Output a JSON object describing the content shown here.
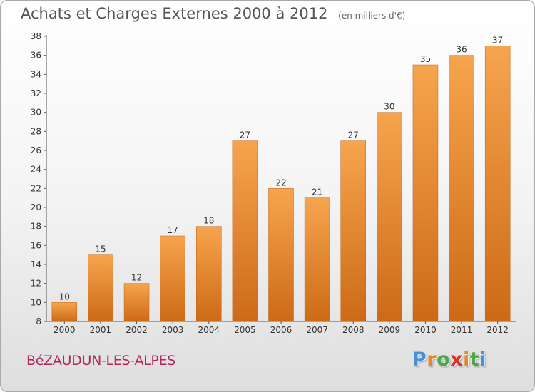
{
  "header": {
    "title": "Achats et Charges Externes 2000 à 2012",
    "unit": "(en milliers d'€)"
  },
  "footer": {
    "commune": "BéZAUDUN-LES-ALPES",
    "logo_letters": [
      "P",
      "r",
      "o",
      "x",
      "i",
      "t",
      "i"
    ]
  },
  "colors": {
    "bar_light": "#f7a44e",
    "bar_dark": "#cc6a17",
    "commune_text": "#b4255e",
    "logo": [
      "#4a90d9",
      "#e8862a",
      "#4ca84c",
      "#d9342b",
      "#e8862a",
      "#4ca84c",
      "#4a90d9"
    ]
  },
  "chart_data": {
    "type": "bar",
    "categories": [
      "2000",
      "2001",
      "2002",
      "2003",
      "2004",
      "2005",
      "2006",
      "2007",
      "2008",
      "2009",
      "2010",
      "2011",
      "2012"
    ],
    "values": [
      10,
      15,
      12,
      17,
      18,
      27,
      22,
      21,
      27,
      30,
      35,
      36,
      37
    ],
    "ylim": [
      8,
      38
    ],
    "yticks": [
      8,
      10,
      12,
      14,
      16,
      18,
      20,
      22,
      24,
      26,
      28,
      30,
      32,
      34,
      36,
      38
    ],
    "grid": false,
    "data_labels": true
  }
}
